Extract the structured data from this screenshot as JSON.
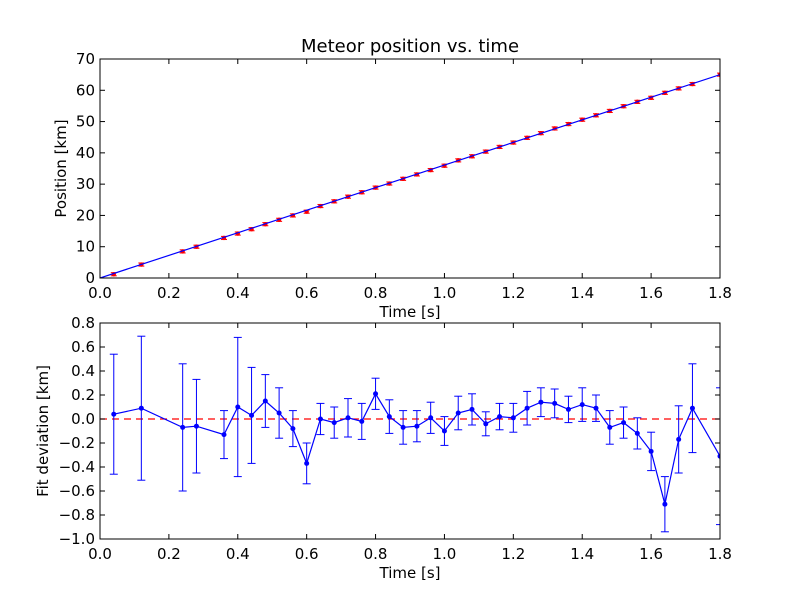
{
  "chart_data": [
    {
      "type": "scatter",
      "title": "Meteor position vs. time",
      "xlabel": "Time [s]",
      "ylabel": "Position [km]",
      "xlim": [
        0.0,
        1.8
      ],
      "ylim": [
        0,
        70
      ],
      "x_ticks": [
        "0.0",
        "0.2",
        "0.4",
        "0.6",
        "0.8",
        "1.0",
        "1.2",
        "1.4",
        "1.6",
        "1.8"
      ],
      "y_ticks": [
        "0",
        "10",
        "20",
        "30",
        "40",
        "50",
        "60",
        "70"
      ],
      "grid": false,
      "fit_line": {
        "x": [
          0.0,
          1.8
        ],
        "y": [
          0.0,
          65.0
        ]
      },
      "series": [
        {
          "color": "#ff0000",
          "x": [
            0.04,
            0.12,
            0.24,
            0.28,
            0.36,
            0.4,
            0.44,
            0.48,
            0.52,
            0.56,
            0.6,
            0.64,
            0.68,
            0.72,
            0.76,
            0.8,
            0.84,
            0.88,
            0.92,
            0.96,
            1.0,
            1.04,
            1.08,
            1.12,
            1.16,
            1.2,
            1.24,
            1.28,
            1.32,
            1.36,
            1.4,
            1.44,
            1.48,
            1.52,
            1.56,
            1.6,
            1.64,
            1.68,
            1.72,
            1.8
          ],
          "y": [
            1.2,
            4.3,
            8.5,
            10.0,
            12.8,
            14.2,
            15.6,
            17.2,
            18.6,
            20.0,
            21.2,
            23.0,
            24.5,
            26.0,
            27.4,
            28.9,
            30.2,
            31.7,
            33.1,
            34.5,
            35.9,
            37.6,
            38.9,
            40.4,
            41.9,
            43.3,
            44.8,
            46.3,
            47.8,
            49.2,
            50.6,
            52.0,
            53.4,
            54.9,
            56.3,
            57.6,
            59.2,
            60.6,
            62.0,
            65.0
          ],
          "y_error": 0.5
        }
      ]
    },
    {
      "type": "line",
      "title": "",
      "xlabel": "Time [s]",
      "ylabel": "Fit deviation [km]",
      "xlim": [
        0.0,
        1.8
      ],
      "ylim": [
        -1.0,
        0.8
      ],
      "x_ticks": [
        "0.0",
        "0.2",
        "0.4",
        "0.6",
        "0.8",
        "1.0",
        "1.2",
        "1.4",
        "1.6",
        "1.8"
      ],
      "y_ticks": [
        "−1.0",
        "−0.8",
        "−0.6",
        "−0.4",
        "−0.2",
        "0.0",
        "0.2",
        "0.4",
        "0.6",
        "0.8"
      ],
      "grid": false,
      "reference_line": {
        "y": 0.0,
        "style": "dashed",
        "color": "#ff0000"
      },
      "series": [
        {
          "color": "#0000ff",
          "x": [
            0.04,
            0.12,
            0.24,
            0.28,
            0.36,
            0.4,
            0.44,
            0.48,
            0.52,
            0.56,
            0.6,
            0.64,
            0.68,
            0.72,
            0.76,
            0.8,
            0.84,
            0.88,
            0.92,
            0.96,
            1.0,
            1.04,
            1.08,
            1.12,
            1.16,
            1.2,
            1.24,
            1.28,
            1.32,
            1.36,
            1.4,
            1.44,
            1.48,
            1.52,
            1.56,
            1.6,
            1.64,
            1.68,
            1.72,
            1.8
          ],
          "y": [
            0.04,
            0.09,
            -0.07,
            -0.06,
            -0.13,
            0.1,
            0.03,
            0.15,
            0.05,
            -0.08,
            -0.37,
            0.0,
            -0.03,
            0.01,
            -0.02,
            0.21,
            0.02,
            -0.07,
            -0.06,
            0.01,
            -0.1,
            0.05,
            0.08,
            -0.04,
            0.02,
            0.01,
            0.09,
            0.14,
            0.13,
            0.08,
            0.12,
            0.09,
            -0.07,
            -0.03,
            -0.12,
            -0.27,
            -0.71,
            -0.17,
            0.09,
            -0.31
          ],
          "y_error": [
            0.5,
            0.6,
            0.53,
            0.39,
            0.2,
            0.58,
            0.4,
            0.22,
            0.21,
            0.15,
            0.17,
            0.13,
            0.13,
            0.16,
            0.15,
            0.13,
            0.14,
            0.14,
            0.13,
            0.13,
            0.12,
            0.14,
            0.13,
            0.1,
            0.11,
            0.12,
            0.14,
            0.12,
            0.12,
            0.11,
            0.14,
            0.11,
            0.14,
            0.13,
            0.13,
            0.16,
            0.23,
            0.28,
            0.37,
            0.57
          ]
        }
      ]
    }
  ]
}
